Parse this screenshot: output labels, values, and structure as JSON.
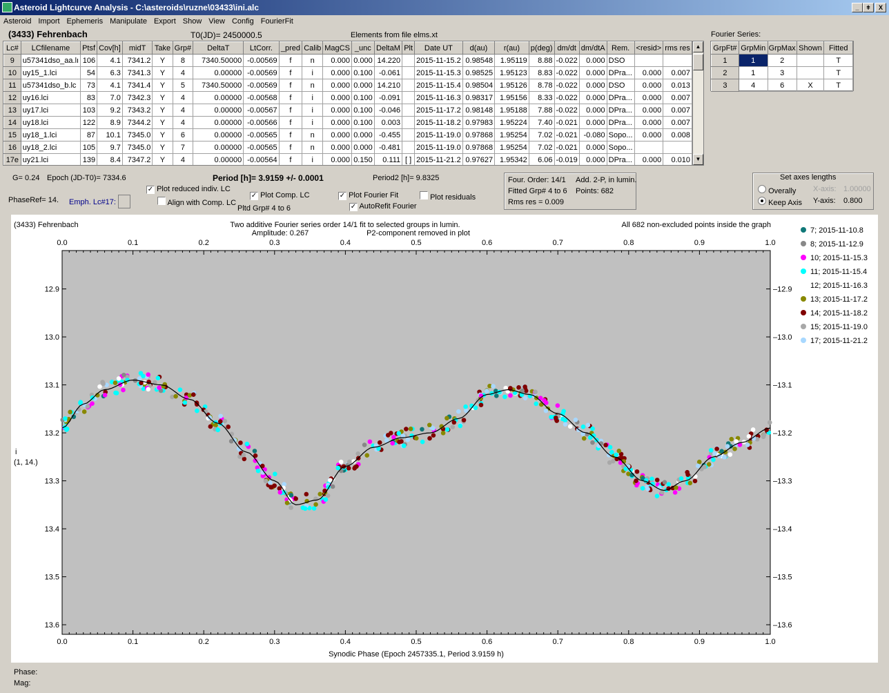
{
  "window": {
    "title": "Asteroid Lightcurve Analysis - C:\\asteroids\\ruzne\\03433\\ini.alc",
    "min": "_",
    "max": "ǂ",
    "close": "X"
  },
  "menu": [
    "Asteroid",
    "Import",
    "Ephemeris",
    "Manipulate",
    "Export",
    "Show",
    "View",
    "Config",
    "FourierFit"
  ],
  "header": {
    "asteroid": "(3433) Fehrenbach",
    "t0": "T0(JD)= 2450000.5",
    "elements": "Elements from file elms.xt",
    "fourier_label": "Fourier Series:"
  },
  "grid": {
    "columns": [
      "Lc#",
      "LCfilename",
      "Ptsf",
      "Cov[h]",
      "midT",
      "Take",
      "Grp#",
      "DeltaT",
      "LtCorr.",
      "_pred",
      "Calib",
      "MagCS",
      "_unc",
      "DeltaM",
      "Plt",
      "Date UT",
      "d(au)",
      "r(au)",
      "p(deg)",
      "dm/dt",
      "dm/dtA",
      "Rem.",
      "<resid>",
      "rms res"
    ],
    "rows": [
      [
        "9",
        "u57341dso_aa.lı",
        "106",
        "4.1",
        "7341.2",
        "Y",
        "8",
        "7340.50000",
        "-0.00569",
        "f",
        "n",
        "0.000",
        "0.000",
        "14.220",
        "",
        "2015-11-15.2",
        "0.98548",
        "1.95119",
        "8.88",
        "-0.022",
        "0.000",
        "DSO",
        "",
        ""
      ],
      [
        "10",
        "uy15_1.lci",
        "54",
        "6.3",
        "7341.3",
        "Y",
        "4",
        "0.00000",
        "-0.00569",
        "f",
        "i",
        "0.000",
        "0.100",
        "-0.061",
        "",
        "2015-11-15.3",
        "0.98525",
        "1.95123",
        "8.83",
        "-0.022",
        "0.000",
        "DPra...",
        "0.000",
        "0.007"
      ],
      [
        "11",
        "u57341dso_b.lc",
        "73",
        "4.1",
        "7341.4",
        "Y",
        "5",
        "7340.50000",
        "-0.00569",
        "f",
        "n",
        "0.000",
        "0.000",
        "14.210",
        "",
        "2015-11-15.4",
        "0.98504",
        "1.95126",
        "8.78",
        "-0.022",
        "0.000",
        "DSO",
        "0.000",
        "0.013"
      ],
      [
        "12",
        "uy16.lci",
        "83",
        "7.0",
        "7342.3",
        "Y",
        "4",
        "0.00000",
        "-0.00568",
        "f",
        "i",
        "0.000",
        "0.100",
        "-0.091",
        "",
        "2015-11-16.3",
        "0.98317",
        "1.95156",
        "8.33",
        "-0.022",
        "0.000",
        "DPra...",
        "0.000",
        "0.007"
      ],
      [
        "13",
        "uy17.lci",
        "103",
        "9.2",
        "7343.2",
        "Y",
        "4",
        "0.00000",
        "-0.00567",
        "f",
        "i",
        "0.000",
        "0.100",
        "-0.046",
        "",
        "2015-11-17.2",
        "0.98148",
        "1.95188",
        "7.88",
        "-0.022",
        "0.000",
        "DPra...",
        "0.000",
        "0.007"
      ],
      [
        "14",
        "uy18.lci",
        "122",
        "8.9",
        "7344.2",
        "Y",
        "4",
        "0.00000",
        "-0.00566",
        "f",
        "i",
        "0.000",
        "0.100",
        "0.003",
        "",
        "2015-11-18.2",
        "0.97983",
        "1.95224",
        "7.40",
        "-0.021",
        "0.000",
        "DPra...",
        "0.000",
        "0.007"
      ],
      [
        "15",
        "uy18_1.lci",
        "87",
        "10.1",
        "7345.0",
        "Y",
        "6",
        "0.00000",
        "-0.00565",
        "f",
        "n",
        "0.000",
        "0.000",
        "-0.455",
        "",
        "2015-11-19.0",
        "0.97868",
        "1.95254",
        "7.02",
        "-0.021",
        "-0.080",
        "Sopo...",
        "0.000",
        "0.008"
      ],
      [
        "16",
        "uy18_2.lci",
        "105",
        "9.7",
        "7345.0",
        "Y",
        "7",
        "0.00000",
        "-0.00565",
        "f",
        "n",
        "0.000",
        "0.000",
        "-0.481",
        "",
        "2015-11-19.0",
        "0.97868",
        "1.95254",
        "7.02",
        "-0.021",
        "0.000",
        "Sopo...",
        "",
        ""
      ],
      [
        "17e",
        "uy21.lci",
        "139",
        "8.4",
        "7347.2",
        "Y",
        "4",
        "0.00000",
        "-0.00564",
        "f",
        "i",
        "0.000",
        "0.150",
        "0.111",
        "[ ]",
        "2015-11-21.2",
        "0.97627",
        "1.95342",
        "6.06",
        "-0.019",
        "0.000",
        "DPra...",
        "0.000",
        "0.010"
      ]
    ]
  },
  "fourier": {
    "columns": [
      "GrpFt#",
      "GrpMin",
      "GrpMax",
      "Shown",
      "Fitted"
    ],
    "rows": [
      [
        "1",
        "1",
        "2",
        "",
        "T"
      ],
      [
        "2",
        "1",
        "3",
        "",
        "T"
      ],
      [
        "3",
        "4",
        "6",
        "X",
        "T"
      ]
    ]
  },
  "controls": {
    "g": "G= 0.24",
    "epoch": "Epoch (JD-T0)= 7334.6",
    "period": "Period [h]= 3.9159 +/- 0.0001",
    "period2": "Period2 [h]= 9.8325",
    "phaseref": "PhaseRef= 14.",
    "emph": "Emph. Lc#17:",
    "plot_reduced": "Plot reduced indiv. LC",
    "align": "Align with Comp. LC",
    "plot_comp": "Plot Comp. LC",
    "pltd_grp": "Pltd Grp#  4   to   6",
    "plot_fourier": "Plot Fourier Fit",
    "autorefit": "AutoRefit Fourier",
    "plot_residuals": "Plot residuals",
    "four_order": "Four. Order: 14/1",
    "add2p": "Add. 2-P, in lumin.",
    "fitted_grp": "Fitted Grp# 4 to 6",
    "points": "Points: 682",
    "rms": "Rms res     = 0.009",
    "axes_title": "Set axes lengths",
    "overally": "Overally",
    "keep_axis": "Keep Axis",
    "xaxis_lbl": "X-axis:",
    "xaxis_val": "1.00000",
    "yaxis_lbl": "Y-axis:",
    "yaxis_val": "0.800"
  },
  "status": {
    "phase": "Phase:",
    "mag": "Mag:"
  },
  "chart_data": {
    "type": "scatter",
    "title": "(3433) Fehrenbach",
    "subtitle1": "Two additive Fourier series order 14/1 fit to selected groups in lumin.",
    "subtitle2": "Amplitude: 0.267",
    "subtitle3": "P2-component removed in plot",
    "note": "All 682 non-excluded points inside the graph",
    "xlabel": "Synodic Phase (Epoch 2457335.1, Period 3.9159 h)",
    "ylabel_top": "i",
    "ylabel_bot": "(1, 14.)",
    "xlim": [
      0,
      1
    ],
    "ylim": [
      12.82,
      13.62
    ],
    "xticks": [
      "0.0",
      "0.1",
      "0.2",
      "0.3",
      "0.4",
      "0.5",
      "0.6",
      "0.7",
      "0.8",
      "0.9",
      "1.0"
    ],
    "yticks": [
      "12.9",
      "13.0",
      "13.1",
      "13.2",
      "13.3",
      "13.4",
      "13.5",
      "13.6"
    ],
    "fit_curve": {
      "x": [
        0,
        0.03,
        0.06,
        0.1,
        0.14,
        0.18,
        0.22,
        0.26,
        0.3,
        0.33,
        0.36,
        0.4,
        0.44,
        0.48,
        0.52,
        0.56,
        0.6,
        0.63,
        0.66,
        0.7,
        0.74,
        0.78,
        0.82,
        0.85,
        0.88,
        0.92,
        0.96,
        1.0
      ],
      "y": [
        13.19,
        13.14,
        13.11,
        13.09,
        13.1,
        13.13,
        13.18,
        13.24,
        13.3,
        13.35,
        13.34,
        13.27,
        13.23,
        13.21,
        13.2,
        13.17,
        13.12,
        13.11,
        13.12,
        13.16,
        13.2,
        13.25,
        13.3,
        13.32,
        13.3,
        13.25,
        13.22,
        13.19
      ]
    },
    "series": [
      {
        "name": "7; 2015-11-10.8",
        "color": "#107878"
      },
      {
        "name": "8; 2015-11-12.9",
        "color": "#888888"
      },
      {
        "name": "10; 2015-11-15.3",
        "color": "#ff00ff"
      },
      {
        "name": "11; 2015-11-15.4",
        "color": "#00ffff"
      },
      {
        "name": "12; 2015-11-16.3",
        "color": "#ffffff"
      },
      {
        "name": "13; 2015-11-17.2",
        "color": "#888800"
      },
      {
        "name": "14; 2015-11-18.2",
        "color": "#800000"
      },
      {
        "name": "15; 2015-11-19.0",
        "color": "#a8a8a8"
      },
      {
        "name": "17; 2015-11-21.2",
        "color": "#a8d8ff"
      }
    ]
  }
}
